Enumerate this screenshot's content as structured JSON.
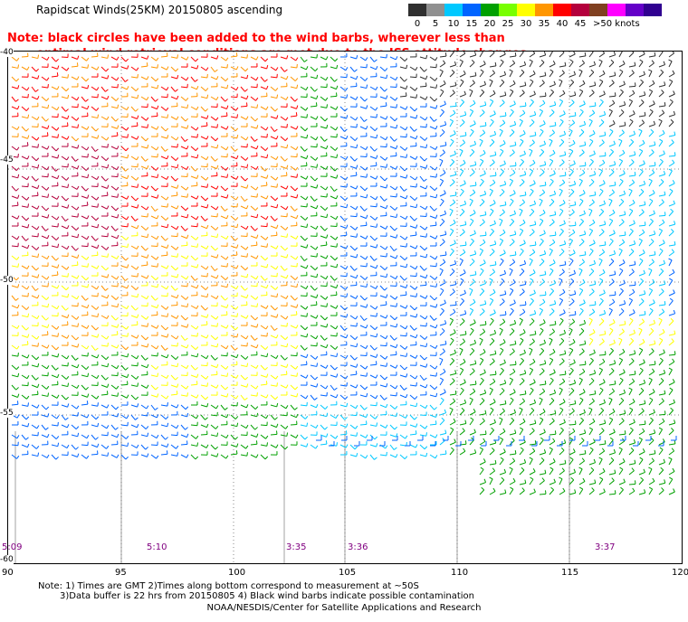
{
  "title": "Rapidscat Winds(25KM) 20150805 ascending",
  "note": {
    "line1": "Note: black circles have been added to the wind barbs, wherever less than",
    "line2": "optimal wind retrieval conditions are met due to the ISS attitude changes."
  },
  "legend": {
    "labels": [
      "0",
      "5",
      "10",
      "15",
      "20",
      "25",
      "30",
      "35",
      "40",
      "45",
      ">50 knots"
    ],
    "colors": [
      "#303030",
      "#909090",
      "#00c8ff",
      "#0064ff",
      "#00a000",
      "#78ff00",
      "#ffff00",
      "#ff9600",
      "#ff0000",
      "#b4003c",
      "#804020",
      "#ff00ff",
      "#6400c8",
      "#300090"
    ]
  },
  "map": {
    "lat_labels": [
      "-40",
      "-45",
      "-50",
      "-55",
      "-60"
    ],
    "lon_labels": [
      "90",
      "95",
      "100",
      "105",
      "110",
      "115",
      "120"
    ],
    "pass_times": [
      "5:09",
      "5:10",
      "3:35",
      "3:36",
      "3:37"
    ]
  },
  "footer": {
    "line1": "Note: 1) Times are GMT 2)Times along bottom correspond to measurement at ~50S",
    "line2": "3)Data buffer is 22 hrs from 20150805 4) Black wind barbs indicate possible contamination",
    "line3": "NOAA/NESDIS/Center for Satellite Applications and Research"
  }
}
